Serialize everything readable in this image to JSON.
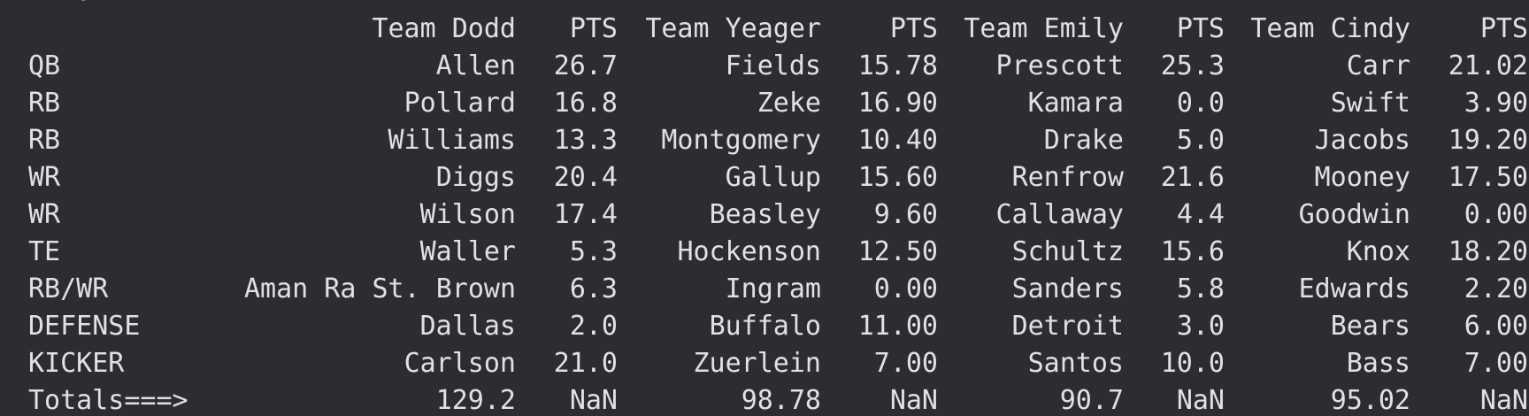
{
  "clipped_line": "   d:",
  "table": {
    "headers": [
      "",
      "Team Dodd",
      "PTS",
      "Team Yeager",
      "PTS",
      "Team Emily",
      "PTS",
      "Team Cindy",
      "PTS"
    ],
    "rows": [
      [
        "QB",
        "Allen",
        "26.7",
        "Fields",
        "15.78",
        "Prescott",
        "25.3",
        "Carr",
        "21.02"
      ],
      [
        "RB",
        "Pollard",
        "16.8",
        "Zeke",
        "16.90",
        "Kamara",
        "0.0",
        "Swift",
        "3.90"
      ],
      [
        "RB",
        "Williams",
        "13.3",
        "Montgomery",
        "10.40",
        "Drake",
        "5.0",
        "Jacobs",
        "19.20"
      ],
      [
        "WR",
        "Diggs",
        "20.4",
        "Gallup",
        "15.60",
        "Renfrow",
        "21.6",
        "Mooney",
        "17.50"
      ],
      [
        "WR",
        "Wilson",
        "17.4",
        "Beasley",
        "9.60",
        "Callaway",
        "4.4",
        "Goodwin",
        "0.00"
      ],
      [
        "TE",
        "Waller",
        "5.3",
        "Hockenson",
        "12.50",
        "Schultz",
        "15.6",
        "Knox",
        "18.20"
      ],
      [
        "RB/WR",
        "Aman Ra St. Brown",
        "6.3",
        "Ingram",
        "0.00",
        "Sanders",
        "5.8",
        "Edwards",
        "2.20"
      ],
      [
        "DEFENSE",
        "Dallas",
        "2.0",
        "Buffalo",
        "11.00",
        "Detroit",
        "3.0",
        "Bears",
        "6.00"
      ],
      [
        "KICKER",
        "Carlson",
        "21.0",
        "Zuerlein",
        "7.00",
        "Santos",
        "10.0",
        "Bass",
        "7.00"
      ],
      [
        "Totals===>",
        "129.2",
        "NaN",
        "98.78",
        "NaN",
        "90.7",
        "NaN",
        "95.02",
        "NaN"
      ]
    ]
  }
}
